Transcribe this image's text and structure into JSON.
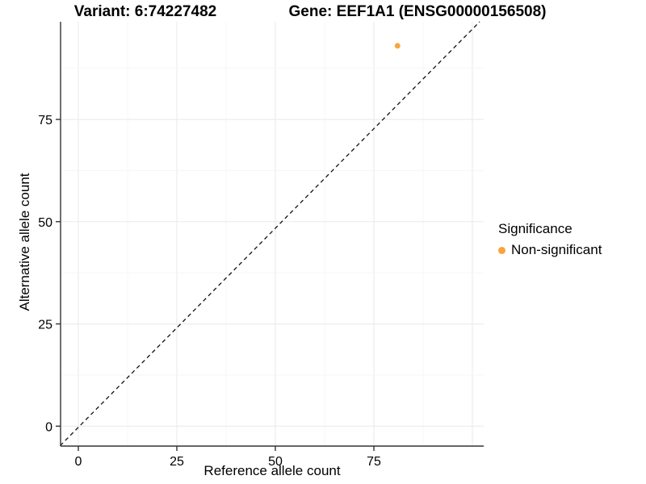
{
  "titles": {
    "variant": "Variant: 6:74227482",
    "gene": "Gene: EEF1A1 (ENSG00000156508)"
  },
  "chart_data": {
    "type": "scatter",
    "xlabel": "Reference allele count",
    "ylabel": "Alternative allele count",
    "x_ticks": [
      0,
      25,
      50,
      75
    ],
    "y_ticks": [
      0,
      25,
      50,
      75
    ],
    "xlim": [
      -4.7,
      102.9
    ],
    "ylim": [
      -4.9,
      98.4
    ],
    "grid": "major+minor",
    "points": [
      {
        "x": 81,
        "y": 93,
        "series": "Non-significant"
      }
    ],
    "abline": {
      "slope": 1,
      "intercept": 0,
      "style": "dashed"
    },
    "legend_position": "right"
  },
  "legend": {
    "title": "Significance",
    "items": [
      {
        "label": "Non-significant",
        "color": "#F9A43C"
      }
    ]
  },
  "colors": {
    "point": "#F9A43C",
    "grid_major": "#EBEBEB",
    "grid_minor": "#F5F5F5",
    "axis_line": "#333333",
    "tick": "#333333",
    "dashed_line": "#111111",
    "text": "#000000",
    "background": "#FFFFFF"
  }
}
